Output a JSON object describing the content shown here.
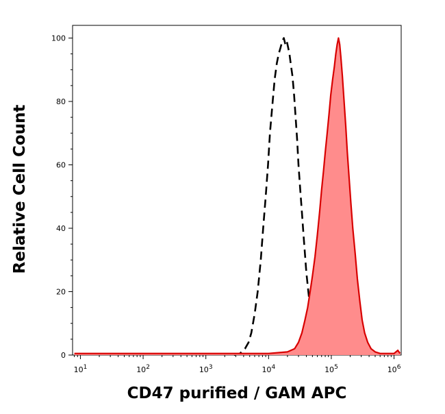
{
  "chart_data": {
    "type": "area",
    "title": "",
    "xlabel": "CD47 purified / GAM APC",
    "ylabel": "Relative Cell Count",
    "xscale": "log",
    "xlim": [
      7.5,
      1300000
    ],
    "ylim": [
      0,
      104
    ],
    "grid": false,
    "legend": "none",
    "x_ticks": [
      {
        "value": 10,
        "base": "10",
        "exp": "1"
      },
      {
        "value": 100,
        "base": "10",
        "exp": "2"
      },
      {
        "value": 1000,
        "base": "10",
        "exp": "3"
      },
      {
        "value": 10000,
        "base": "10",
        "exp": "4"
      },
      {
        "value": 100000,
        "base": "10",
        "exp": "5"
      },
      {
        "value": 1000000,
        "base": "10",
        "exp": "6"
      }
    ],
    "y_ticks": [
      {
        "value": 0,
        "label": "0"
      },
      {
        "value": 20,
        "label": "20"
      },
      {
        "value": 40,
        "label": "40"
      },
      {
        "value": 60,
        "label": "60"
      },
      {
        "value": 80,
        "label": "80"
      },
      {
        "value": 100,
        "label": "100"
      }
    ],
    "series": [
      {
        "style": "dashed-outline",
        "color": "#000000",
        "points": [
          [
            2800,
            0
          ],
          [
            3500,
            0.5
          ],
          [
            4200,
            2
          ],
          [
            4800,
            4
          ],
          [
            5300,
            7
          ],
          [
            6000,
            13
          ],
          [
            6700,
            20
          ],
          [
            7500,
            30
          ],
          [
            8200,
            40
          ],
          [
            9000,
            50
          ],
          [
            9800,
            60
          ],
          [
            10500,
            70
          ],
          [
            11500,
            79
          ],
          [
            12500,
            87
          ],
          [
            13500,
            92
          ],
          [
            14500,
            95
          ],
          [
            15500,
            97
          ],
          [
            16500,
            99
          ],
          [
            17500,
            100
          ],
          [
            18500,
            98
          ],
          [
            19500,
            99
          ],
          [
            20500,
            97
          ],
          [
            21500,
            95
          ],
          [
            22500,
            92
          ],
          [
            24000,
            88
          ],
          [
            25500,
            82
          ],
          [
            27000,
            75
          ],
          [
            28500,
            68
          ],
          [
            30000,
            60
          ],
          [
            32000,
            52
          ],
          [
            34000,
            45
          ],
          [
            36000,
            38
          ],
          [
            38000,
            32
          ],
          [
            40000,
            26
          ],
          [
            43000,
            20
          ],
          [
            46000,
            15
          ],
          [
            50000,
            10
          ],
          [
            55000,
            6
          ],
          [
            60000,
            3
          ],
          [
            70000,
            1.5
          ],
          [
            85000,
            0.5
          ],
          [
            100000,
            0
          ]
        ]
      },
      {
        "style": "filled",
        "color": "#d80000",
        "fill": "#ff8c8c",
        "points": [
          [
            8,
            0.5
          ],
          [
            1000,
            0.5
          ],
          [
            10000,
            0.5
          ],
          [
            20000,
            1
          ],
          [
            26000,
            2
          ],
          [
            30000,
            4
          ],
          [
            34000,
            7
          ],
          [
            38000,
            11
          ],
          [
            42000,
            15
          ],
          [
            46000,
            20
          ],
          [
            50000,
            25
          ],
          [
            55000,
            31
          ],
          [
            60000,
            38
          ],
          [
            65000,
            45
          ],
          [
            70000,
            52
          ],
          [
            75000,
            58
          ],
          [
            80000,
            64
          ],
          [
            86000,
            70
          ],
          [
            92000,
            76
          ],
          [
            98000,
            82
          ],
          [
            105000,
            87
          ],
          [
            112000,
            91
          ],
          [
            118000,
            95
          ],
          [
            124000,
            98
          ],
          [
            130000,
            100
          ],
          [
            136000,
            98
          ],
          [
            142000,
            94
          ],
          [
            150000,
            88
          ],
          [
            160000,
            80
          ],
          [
            170000,
            72
          ],
          [
            180000,
            64
          ],
          [
            192000,
            56
          ],
          [
            205000,
            48
          ],
          [
            220000,
            40
          ],
          [
            240000,
            32
          ],
          [
            260000,
            24
          ],
          [
            285000,
            17
          ],
          [
            310000,
            11
          ],
          [
            340000,
            7
          ],
          [
            380000,
            4
          ],
          [
            430000,
            2
          ],
          [
            500000,
            1
          ],
          [
            600000,
            0.5
          ],
          [
            800000,
            0.5
          ],
          [
            1000000,
            0.5
          ],
          [
            1150000,
            1.5
          ],
          [
            1250000,
            0.5
          ]
        ]
      }
    ]
  }
}
